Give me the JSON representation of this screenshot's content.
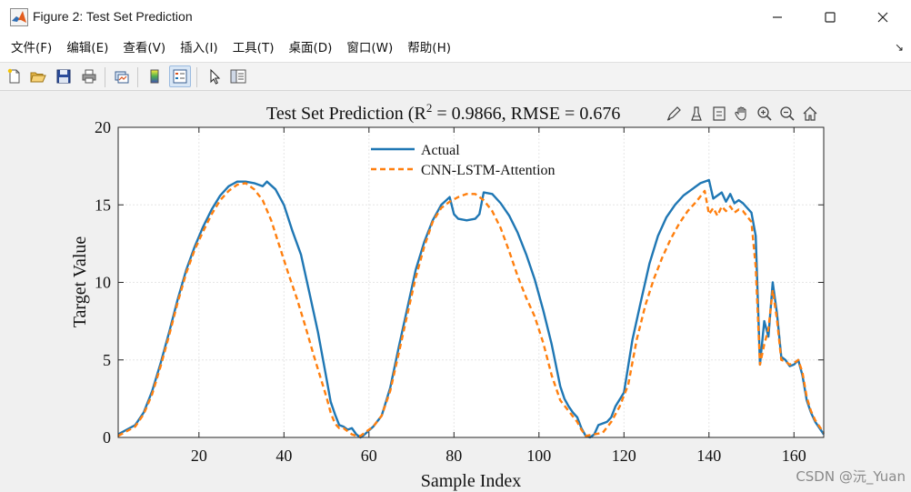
{
  "window": {
    "title": "Figure 2: Test Set Prediction",
    "minimize_glyph": "—",
    "maximize_glyph": "☐",
    "close_glyph": "✕"
  },
  "menu": {
    "items": [
      "文件(F)",
      "编辑(E)",
      "查看(V)",
      "插入(I)",
      "工具(T)",
      "桌面(D)",
      "窗口(W)",
      "帮助(H)"
    ],
    "overflow_glyph": "↘"
  },
  "toolbar": {
    "icons": [
      "new-figure-icon",
      "open-file-icon",
      "save-icon",
      "print-icon",
      "link-plot-icon",
      "colorbar-icon",
      "legend-icon",
      "select-arrow-icon",
      "property-inspector-icon"
    ]
  },
  "axes_toolbar": {
    "icons": [
      "brush-edit-icon",
      "data-brush-icon",
      "datatip-icon",
      "pan-hand-icon",
      "zoom-in-icon",
      "zoom-out-icon",
      "home-icon"
    ]
  },
  "watermark": "CSDN @沅_Yuan",
  "colors": {
    "actual": "#1f77b4",
    "predicted": "#ff7f0e",
    "figure_bg": "#f0f0f0",
    "grid": "#e6e6e6"
  },
  "chart_data": {
    "type": "line",
    "title_prefix": "Test Set Prediction (R",
    "title_sup": "2",
    "title_suffix": " = 0.9866, RMSE = 0.676",
    "xlabel": "Sample Index",
    "ylabel": "Target Value",
    "xlim": [
      1,
      167
    ],
    "ylim": [
      0,
      20
    ],
    "xticks": [
      20,
      40,
      60,
      80,
      100,
      120,
      140,
      160
    ],
    "yticks": [
      0,
      5,
      10,
      15,
      20
    ],
    "grid": true,
    "legend_position": "top-center",
    "series": [
      {
        "name": "Actual",
        "style": "solid",
        "points": [
          [
            1,
            0.2
          ],
          [
            3,
            0.5
          ],
          [
            5,
            0.8
          ],
          [
            7,
            1.6
          ],
          [
            9,
            3.0
          ],
          [
            11,
            4.8
          ],
          [
            13,
            6.8
          ],
          [
            15,
            8.9
          ],
          [
            17,
            10.8
          ],
          [
            19,
            12.3
          ],
          [
            21,
            13.6
          ],
          [
            23,
            14.7
          ],
          [
            25,
            15.6
          ],
          [
            27,
            16.2
          ],
          [
            29,
            16.5
          ],
          [
            31,
            16.5
          ],
          [
            33,
            16.4
          ],
          [
            35,
            16.2
          ],
          [
            36,
            16.5
          ],
          [
            38,
            16.0
          ],
          [
            40,
            15.0
          ],
          [
            42,
            13.3
          ],
          [
            44,
            11.8
          ],
          [
            46,
            9.3
          ],
          [
            48,
            6.8
          ],
          [
            50,
            3.8
          ],
          [
            51,
            2.3
          ],
          [
            52,
            1.5
          ],
          [
            53,
            0.8
          ],
          [
            54,
            0.7
          ],
          [
            55,
            0.5
          ],
          [
            56,
            0.6
          ],
          [
            57,
            0.2
          ],
          [
            58,
            0.0
          ],
          [
            59,
            0.2
          ],
          [
            61,
            0.7
          ],
          [
            63,
            1.4
          ],
          [
            65,
            3.2
          ],
          [
            67,
            5.8
          ],
          [
            69,
            8.3
          ],
          [
            71,
            10.8
          ],
          [
            73,
            12.6
          ],
          [
            75,
            14.0
          ],
          [
            77,
            15.0
          ],
          [
            79,
            15.5
          ],
          [
            80,
            14.4
          ],
          [
            81,
            14.1
          ],
          [
            83,
            14.0
          ],
          [
            85,
            14.1
          ],
          [
            86,
            14.4
          ],
          [
            87,
            15.8
          ],
          [
            89,
            15.7
          ],
          [
            91,
            15.1
          ],
          [
            93,
            14.3
          ],
          [
            95,
            13.2
          ],
          [
            97,
            11.8
          ],
          [
            99,
            10.2
          ],
          [
            101,
            8.2
          ],
          [
            103,
            6.0
          ],
          [
            105,
            3.3
          ],
          [
            106,
            2.5
          ],
          [
            107,
            2.0
          ],
          [
            108,
            1.6
          ],
          [
            109,
            1.3
          ],
          [
            110,
            0.6
          ],
          [
            111,
            0.1
          ],
          [
            112,
            0.0
          ],
          [
            113,
            0.2
          ],
          [
            114,
            0.8
          ],
          [
            116,
            1.0
          ],
          [
            117,
            1.3
          ],
          [
            118,
            2.0
          ],
          [
            120,
            2.9
          ],
          [
            122,
            6.3
          ],
          [
            124,
            8.8
          ],
          [
            126,
            11.2
          ],
          [
            128,
            13.0
          ],
          [
            130,
            14.2
          ],
          [
            132,
            15.0
          ],
          [
            134,
            15.6
          ],
          [
            136,
            16.0
          ],
          [
            138,
            16.4
          ],
          [
            140,
            16.6
          ],
          [
            141,
            15.4
          ],
          [
            143,
            15.8
          ],
          [
            144,
            15.2
          ],
          [
            145,
            15.7
          ],
          [
            146,
            15.1
          ],
          [
            147,
            15.3
          ],
          [
            148,
            15.1
          ],
          [
            150,
            14.5
          ],
          [
            151,
            13.0
          ],
          [
            152,
            4.7
          ],
          [
            153,
            7.5
          ],
          [
            154,
            6.5
          ],
          [
            155,
            10.0
          ],
          [
            156,
            8.0
          ],
          [
            157,
            5.2
          ],
          [
            158,
            5.0
          ],
          [
            159,
            4.6
          ],
          [
            160,
            4.7
          ],
          [
            161,
            5.0
          ],
          [
            162,
            4.0
          ],
          [
            163,
            2.4
          ],
          [
            164,
            1.6
          ],
          [
            165,
            1.0
          ],
          [
            167,
            0.2
          ]
        ]
      },
      {
        "name": "CNN-LSTM-Attention",
        "style": "dashed",
        "points": [
          [
            1,
            0.1
          ],
          [
            3,
            0.4
          ],
          [
            5,
            0.7
          ],
          [
            7,
            1.5
          ],
          [
            9,
            2.8
          ],
          [
            11,
            4.6
          ],
          [
            13,
            6.6
          ],
          [
            15,
            8.7
          ],
          [
            17,
            10.6
          ],
          [
            19,
            12.1
          ],
          [
            21,
            13.3
          ],
          [
            23,
            14.4
          ],
          [
            25,
            15.3
          ],
          [
            27,
            15.9
          ],
          [
            29,
            16.3
          ],
          [
            31,
            16.4
          ],
          [
            33,
            16.0
          ],
          [
            35,
            15.3
          ],
          [
            37,
            14.0
          ],
          [
            39,
            12.3
          ],
          [
            41,
            10.6
          ],
          [
            43,
            9.0
          ],
          [
            45,
            7.2
          ],
          [
            47,
            5.3
          ],
          [
            49,
            3.5
          ],
          [
            50,
            2.6
          ],
          [
            51,
            1.6
          ],
          [
            52,
            0.9
          ],
          [
            53,
            0.6
          ],
          [
            54,
            0.6
          ],
          [
            55,
            0.4
          ],
          [
            56,
            0.2
          ],
          [
            57,
            0.1
          ],
          [
            58,
            0.1
          ],
          [
            59,
            0.3
          ],
          [
            61,
            0.7
          ],
          [
            63,
            1.4
          ],
          [
            65,
            3.0
          ],
          [
            67,
            5.4
          ],
          [
            69,
            7.9
          ],
          [
            71,
            10.3
          ],
          [
            73,
            12.3
          ],
          [
            75,
            13.9
          ],
          [
            77,
            14.8
          ],
          [
            79,
            15.2
          ],
          [
            81,
            15.5
          ],
          [
            83,
            15.7
          ],
          [
            85,
            15.7
          ],
          [
            87,
            15.3
          ],
          [
            89,
            14.6
          ],
          [
            91,
            13.5
          ],
          [
            93,
            12.0
          ],
          [
            95,
            10.4
          ],
          [
            97,
            9.0
          ],
          [
            99,
            7.8
          ],
          [
            101,
            6.1
          ],
          [
            103,
            4.0
          ],
          [
            105,
            2.4
          ],
          [
            107,
            1.7
          ],
          [
            109,
            1.0
          ],
          [
            110,
            0.5
          ],
          [
            111,
            0.1
          ],
          [
            113,
            0.2
          ],
          [
            115,
            0.3
          ],
          [
            117,
            1.0
          ],
          [
            119,
            2.0
          ],
          [
            121,
            3.4
          ],
          [
            123,
            6.3
          ],
          [
            125,
            8.5
          ],
          [
            127,
            10.2
          ],
          [
            129,
            11.6
          ],
          [
            131,
            12.8
          ],
          [
            133,
            13.8
          ],
          [
            135,
            14.6
          ],
          [
            137,
            15.2
          ],
          [
            139,
            15.9
          ],
          [
            140,
            14.4
          ],
          [
            141,
            14.8
          ],
          [
            142,
            14.3
          ],
          [
            143,
            14.9
          ],
          [
            144,
            14.6
          ],
          [
            145,
            14.9
          ],
          [
            146,
            14.5
          ],
          [
            147,
            14.7
          ],
          [
            148,
            14.6
          ],
          [
            150,
            13.9
          ],
          [
            151,
            11.0
          ],
          [
            152,
            4.7
          ],
          [
            153,
            6.0
          ],
          [
            154,
            7.0
          ],
          [
            155,
            9.5
          ],
          [
            156,
            7.6
          ],
          [
            157,
            5.0
          ],
          [
            158,
            4.9
          ],
          [
            159,
            4.7
          ],
          [
            160,
            4.8
          ],
          [
            161,
            5.0
          ],
          [
            162,
            4.2
          ],
          [
            163,
            2.6
          ],
          [
            164,
            1.7
          ],
          [
            165,
            1.1
          ],
          [
            167,
            0.3
          ]
        ]
      }
    ]
  }
}
